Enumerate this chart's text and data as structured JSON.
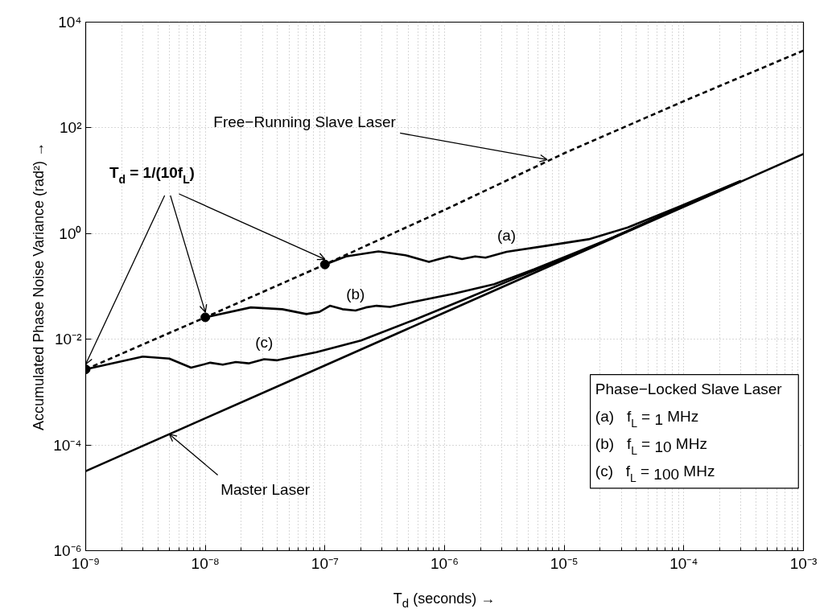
{
  "chart_data": {
    "type": "line",
    "xlabel": "T$_{d}$ (seconds) →",
    "ylabel": "Accumulated Phase Noise Variance (rad²) →",
    "log": "xy",
    "grid": true,
    "line_style": "solid",
    "marker": "none",
    "xlim": [
      1e-09,
      0.001
    ],
    "ylim": [
      1e-06,
      10000.0
    ],
    "xticks": [
      {
        "value": 1e-09,
        "label": "10⁻⁹"
      },
      {
        "value": 1e-08,
        "label": "10⁻⁸"
      },
      {
        "value": 1e-07,
        "label": "10⁻⁷"
      },
      {
        "value": 1e-06,
        "label": "10⁻⁶"
      },
      {
        "value": 1e-05,
        "label": "10⁻⁵"
      },
      {
        "value": 0.0001,
        "label": "10⁻⁴"
      },
      {
        "value": 0.001,
        "label": "10⁻³"
      }
    ],
    "yticks": [
      {
        "value": 1e-06,
        "label": "10⁻⁶"
      },
      {
        "value": 0.0001,
        "label": "10⁻⁴"
      },
      {
        "value": 0.01,
        "label": "10⁻²"
      },
      {
        "value": 1,
        "label": "10⁰"
      },
      {
        "value": 100,
        "label": "10²"
      },
      {
        "value": 10000,
        "label": "10⁴"
      }
    ],
    "series": [
      {
        "color": "#000000",
        "line_style": "dashed",
        "x": [
          1e-09,
          1e-08,
          1e-07,
          1e-06,
          1e-05,
          0.0001,
          0.001
        ],
        "values": [
          0.0027,
          0.026,
          0.26,
          2.8,
          33,
          320,
          2900
        ]
      },
      {
        "color": "#000000",
        "x": [
          1e-09,
          1e-08,
          1e-07,
          1e-06,
          1e-05,
          0.0001,
          0.001
        ],
        "values": [
          3.2e-05,
          0.00032,
          0.0032,
          0.032,
          0.32,
          3.2,
          32
        ]
      },
      {
        "name": "(a)",
        "color": "#000000",
        "x": [
          1e-07,
          1.5e-07,
          2.8e-07,
          4.7e-07,
          7.4e-07,
          9e-07,
          1.1e-06,
          1.4e-06,
          1.8e-06,
          2.2e-06,
          3.3e-06,
          7.2e-06,
          1.6e-05,
          3.4e-05,
          0.0001,
          0.0003
        ],
        "values": [
          0.26,
          0.37,
          0.46,
          0.39,
          0.29,
          0.33,
          0.37,
          0.33,
          0.37,
          0.35,
          0.45,
          0.59,
          0.78,
          1.3,
          3.5,
          10
        ]
      },
      {
        "name": "(b)",
        "color": "#000000",
        "x": [
          1e-08,
          2.4e-08,
          4.4e-08,
          7e-08,
          9e-08,
          1.1e-07,
          1.4e-07,
          1.8e-07,
          2.2e-07,
          2.7e-07,
          3.5e-07,
          5.5e-07,
          1.2e-06,
          2.6e-06,
          5.6e-06,
          1.2e-05,
          2.6e-05,
          0.0001,
          0.0003
        ],
        "values": [
          0.026,
          0.04,
          0.037,
          0.03,
          0.033,
          0.043,
          0.037,
          0.035,
          0.04,
          0.043,
          0.041,
          0.051,
          0.073,
          0.11,
          0.21,
          0.42,
          0.86,
          3.4,
          9.8
        ]
      },
      {
        "name": "(c)",
        "color": "#000000",
        "x": [
          1e-09,
          3e-09,
          5e-09,
          7.6e-09,
          1.1e-08,
          1.4e-08,
          1.8e-08,
          2.3e-08,
          3.1e-08,
          4e-08,
          8.5e-08,
          2e-07,
          5.5e-07,
          1.5e-06,
          4.4e-06,
          1.2e-05,
          3.4e-05,
          0.0001,
          0.0003
        ],
        "values": [
          0.0027,
          0.0047,
          0.0043,
          0.0029,
          0.0036,
          0.0033,
          0.0037,
          0.0035,
          0.0042,
          0.004,
          0.0057,
          0.0095,
          0.023,
          0.058,
          0.16,
          0.4,
          1.12,
          3.3,
          9.7
        ]
      },
      {
        "type": "scatter",
        "marker": "circle",
        "color": "#000000",
        "x": [
          1e-09,
          1e-08,
          1e-07
        ],
        "values": [
          0.0027,
          0.026,
          0.26
        ]
      }
    ],
    "annotations": [
      {
        "text": "Free−Running Slave Laser",
        "x": 7.2e-06,
        "y": 25
      },
      {
        "text": "T$_{d}$ = 1/(10f$_{L}$)",
        "x": 1e-08,
        "y": 0.026
      },
      {
        "text": "Master Laser",
        "x": 5e-09,
        "y": 0.00016
      },
      "Phase−Locked Slave Laser",
      "(a)   f$_{L}$ = 1 MHz",
      "(b)   f$_{L}$ = 10 MHz",
      "(c)   f$_{L}$ = 100 MHz"
    ]
  }
}
